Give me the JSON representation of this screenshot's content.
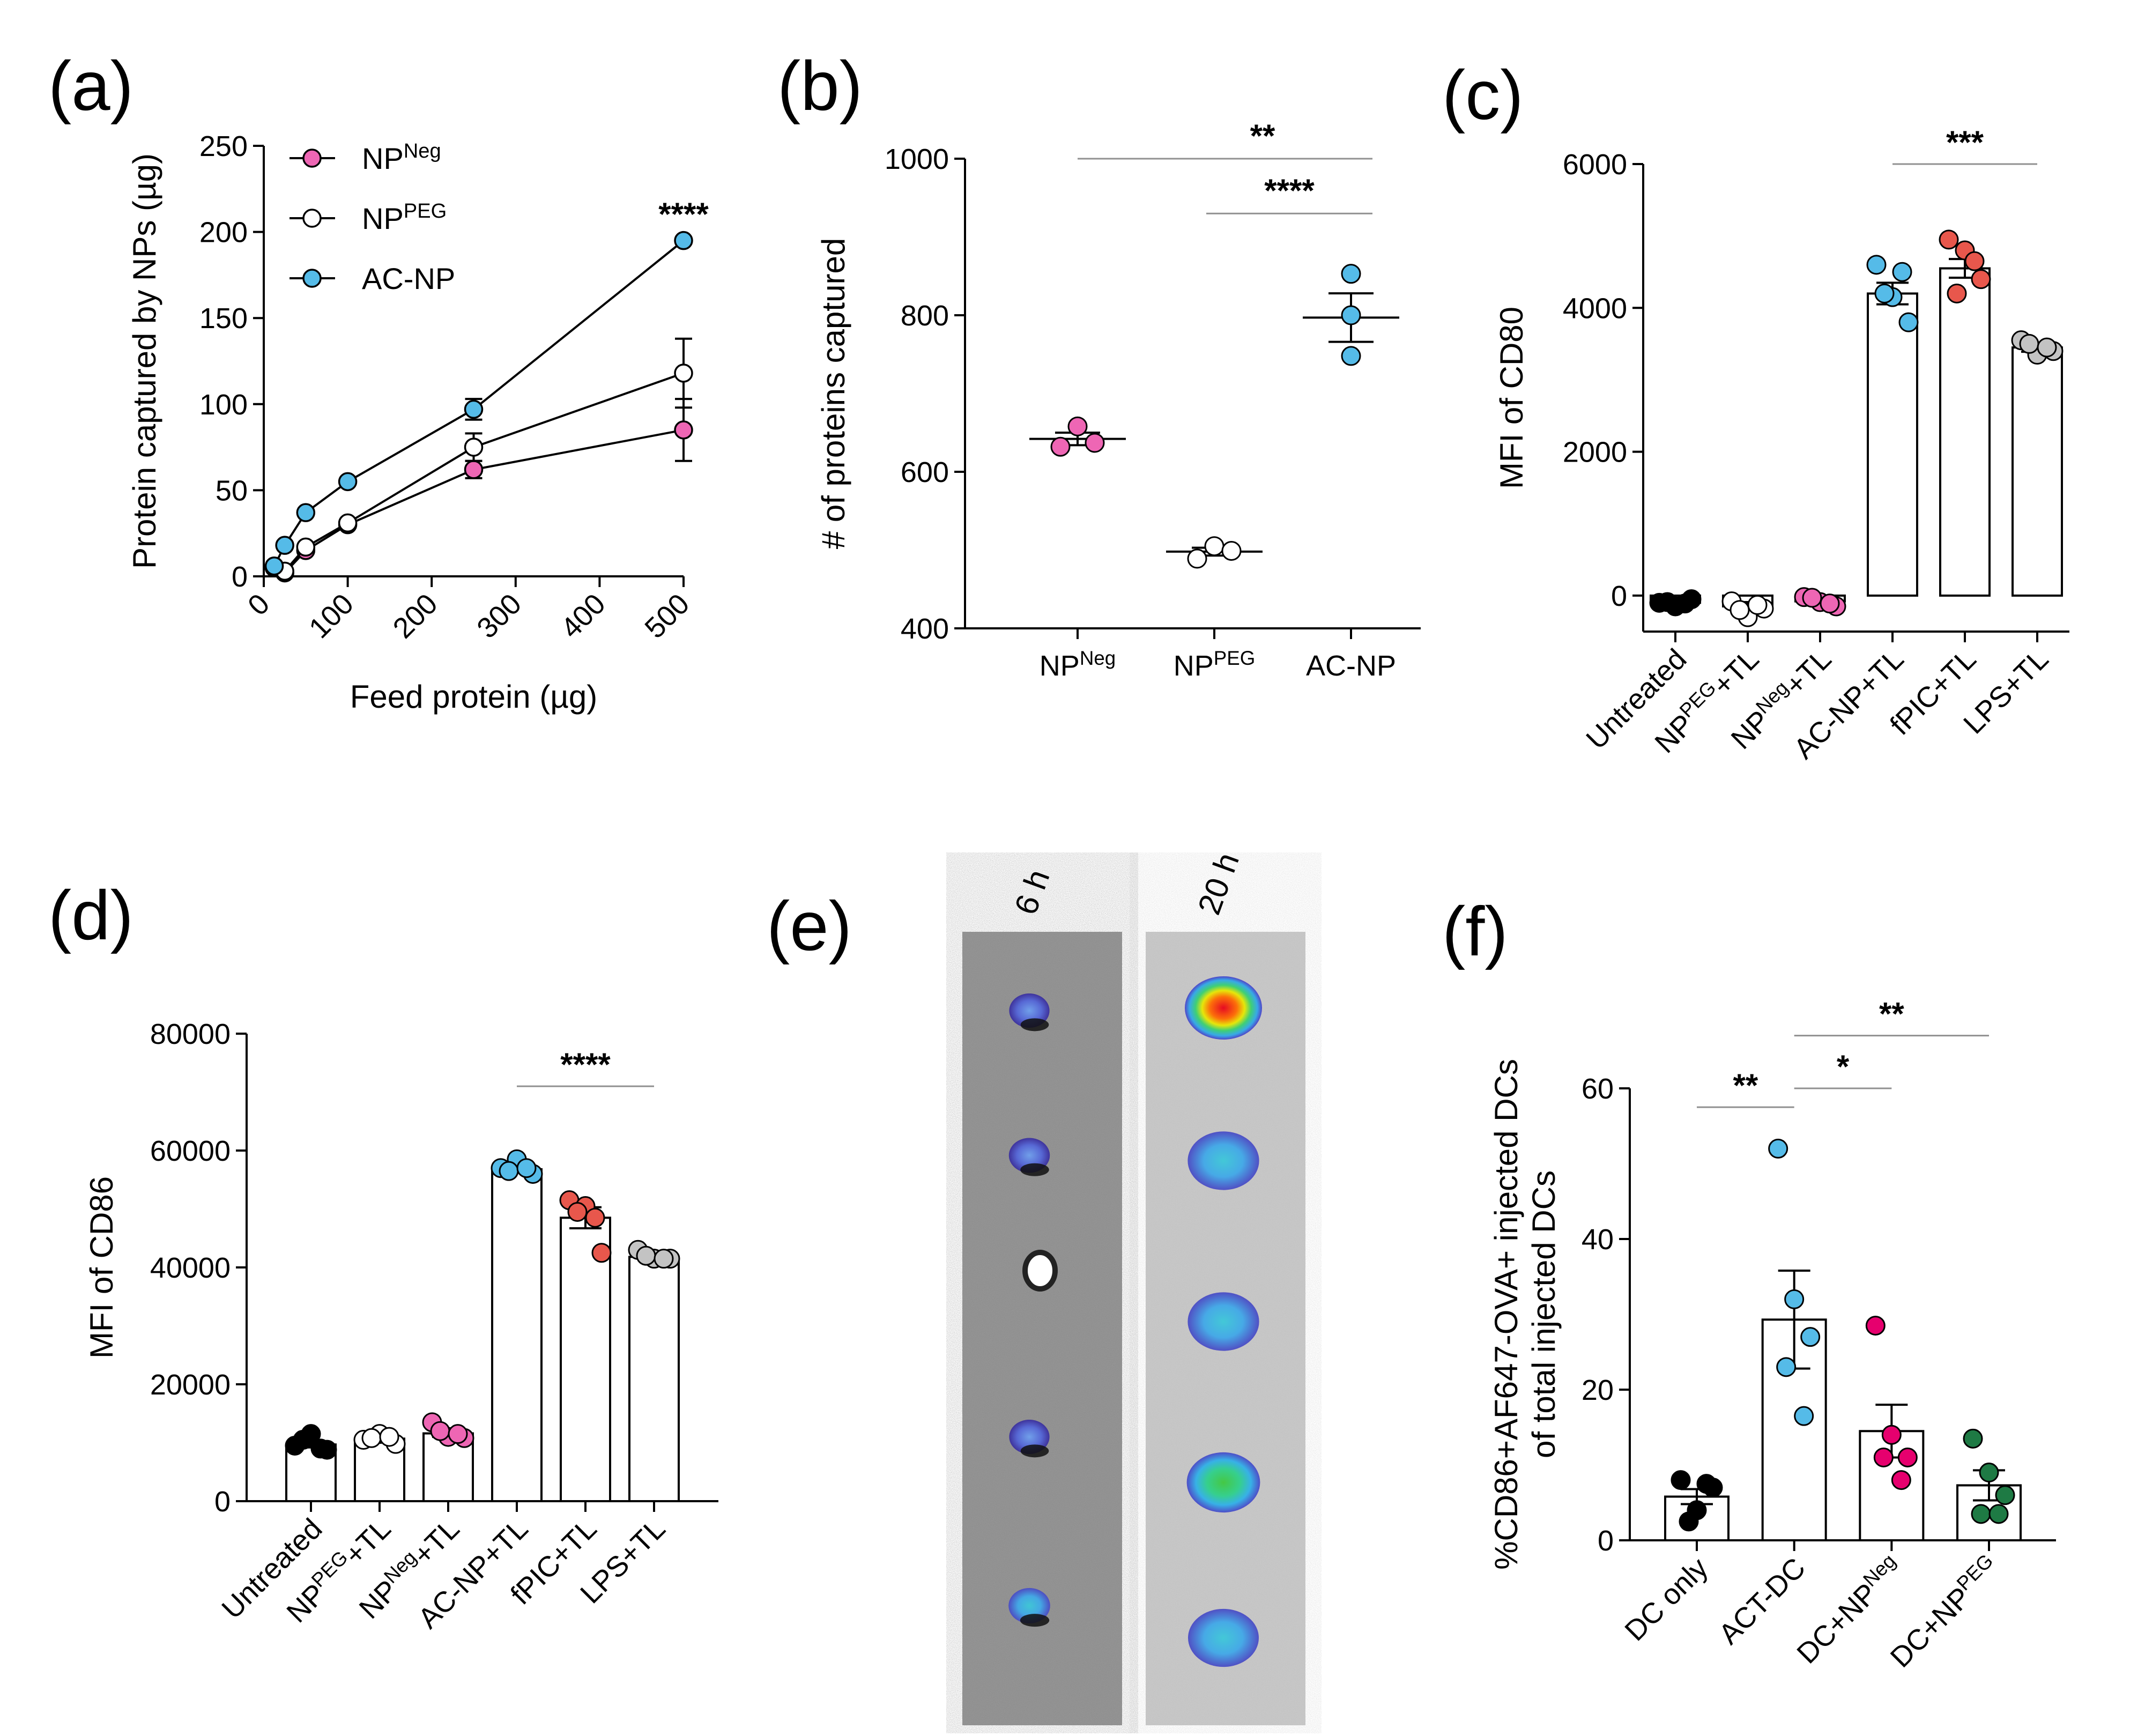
{
  "figure": {
    "panels": {
      "a": {
        "letter": "(a)"
      },
      "b": {
        "letter": "(b)"
      },
      "c": {
        "letter": "(c)"
      },
      "d": {
        "letter": "(d)"
      },
      "e": {
        "letter": "(e)"
      },
      "f": {
        "letter": "(f)"
      }
    }
  },
  "colors": {
    "pink": "#ee66b4",
    "cyan": "#55bbe8",
    "red": "#e8574c",
    "grey": "#c3c3c3",
    "black": "#000000",
    "magenta": "#e6006e",
    "green": "#1e7a44",
    "white": "#ffffff"
  },
  "chart_data": [
    {
      "id": "a",
      "type": "line",
      "xlabel": "Feed protein (µg)",
      "ylabel": "Protein captured by NPs (µg)",
      "xlim": [
        0,
        500
      ],
      "ylim": [
        0,
        250
      ],
      "xticks": [
        0,
        100,
        200,
        300,
        400,
        500
      ],
      "yticks": [
        0,
        50,
        100,
        150,
        200,
        250
      ],
      "legend_position": "top-left",
      "x": [
        12.5,
        25,
        50,
        100,
        250,
        500
      ],
      "series": [
        {
          "name": "NP",
          "sup": "Neg",
          "marker": "pink",
          "values": [
            5,
            2,
            15,
            30,
            62,
            85
          ],
          "errors": [
            2,
            2,
            3,
            3,
            5,
            18
          ]
        },
        {
          "name": "NP",
          "sup": "PEG",
          "marker": "white",
          "values": [
            5,
            3,
            17,
            31,
            75,
            118
          ],
          "errors": [
            2,
            2,
            3,
            3,
            8,
            20
          ]
        },
        {
          "name": "AC-NP",
          "sup": "",
          "marker": "cyan",
          "values": [
            6,
            18,
            37,
            55,
            97,
            195
          ],
          "errors": [
            1,
            2,
            2,
            2,
            6,
            2
          ]
        }
      ],
      "annotations": [
        {
          "text": "****",
          "at_x": 500
        }
      ]
    },
    {
      "id": "b",
      "type": "scatter",
      "ylabel": "# of proteins captured",
      "ylim": [
        400,
        1000
      ],
      "yticks": [
        400,
        600,
        800,
        1000
      ],
      "groups": [
        {
          "label": "NP",
          "sup": "Neg",
          "marker": "pink",
          "points": [
            658,
            632,
            637
          ],
          "mean": 642,
          "sem": 8
        },
        {
          "label": "NP",
          "sup": "PEG",
          "marker": "white",
          "points": [
            505,
            489,
            499
          ],
          "mean": 498,
          "sem": 5
        },
        {
          "label": "AC-NP",
          "sup": "",
          "marker": "cyan",
          "points": [
            853,
            800,
            748
          ],
          "mean": 797,
          "sem": 31
        }
      ],
      "brackets": [
        {
          "from": 0,
          "to": 2,
          "text": "**",
          "y": 1000
        },
        {
          "from": 1,
          "to": 2,
          "text": "****",
          "y": 930
        }
      ]
    },
    {
      "id": "c",
      "type": "bar",
      "ylabel": "MFI of CD80",
      "ylim": [
        -500,
        6000
      ],
      "yticks": [
        0,
        2000,
        4000,
        6000
      ],
      "groups": [
        {
          "label": "Untreated",
          "sup": "",
          "suffix": "",
          "marker": "black",
          "mean": -100,
          "sem": 40,
          "points": [
            -100,
            -150,
            -50,
            -90,
            -110
          ]
        },
        {
          "label": "NP",
          "sup": "PEG",
          "suffix": "+TL",
          "marker": "white",
          "mean": -150,
          "sem": 60,
          "points": [
            -80,
            -300,
            -180,
            -200,
            -130
          ]
        },
        {
          "label": "NP",
          "sup": "Neg",
          "suffix": "+TL",
          "marker": "pink",
          "mean": -80,
          "sem": 40,
          "points": [
            -20,
            -90,
            -150,
            -30,
            -110
          ]
        },
        {
          "label": "AC-NP+TL",
          "sup": "",
          "suffix": "",
          "marker": "cyan",
          "mean": 4200,
          "sem": 150,
          "points": [
            4600,
            4150,
            3800,
            4200,
            4500
          ]
        },
        {
          "label": "fPIC+TL",
          "sup": "",
          "suffix": "",
          "marker": "red",
          "mean": 4550,
          "sem": 130,
          "points": [
            4950,
            4800,
            4400,
            4200,
            4650
          ]
        },
        {
          "label": "LPS+TL",
          "sup": "",
          "suffix": "",
          "marker": "grey",
          "mean": 3450,
          "sem": 60,
          "points": [
            3550,
            3350,
            3400,
            3500,
            3450
          ]
        }
      ],
      "brackets": [
        {
          "from": 3,
          "to": 5,
          "text": "***",
          "y": 6000
        }
      ]
    },
    {
      "id": "d",
      "type": "bar",
      "ylabel": "MFI of CD86",
      "ylim": [
        0,
        80000
      ],
      "yticks": [
        0,
        20000,
        40000,
        60000,
        80000
      ],
      "groups": [
        {
          "label": "Untreated",
          "sup": "",
          "suffix": "",
          "marker": "black",
          "mean": 9700,
          "sem": 500,
          "points": [
            9500,
            11500,
            8800,
            10500,
            9000
          ]
        },
        {
          "label": "NP",
          "sup": "PEG",
          "suffix": "+TL",
          "marker": "white",
          "mean": 10700,
          "sem": 300,
          "points": [
            10500,
            11500,
            9800,
            10800,
            11000
          ]
        },
        {
          "label": "NP",
          "sup": "Neg",
          "suffix": "+TL",
          "marker": "pink",
          "mean": 11600,
          "sem": 600,
          "points": [
            13500,
            11000,
            10800,
            12000,
            11500
          ]
        },
        {
          "label": "AC-NP+TL",
          "sup": "",
          "suffix": "",
          "marker": "cyan",
          "mean": 56800,
          "sem": 500,
          "points": [
            57000,
            58500,
            56000,
            56500,
            57000
          ]
        },
        {
          "label": "fPIC+TL",
          "sup": "",
          "suffix": "",
          "marker": "red",
          "mean": 48500,
          "sem": 1800,
          "points": [
            51500,
            50500,
            42500,
            49500,
            48500
          ]
        },
        {
          "label": "LPS+TL",
          "sup": "",
          "suffix": "",
          "marker": "grey",
          "mean": 41800,
          "sem": 500,
          "points": [
            43000,
            41500,
            41500,
            42000,
            41500
          ]
        }
      ],
      "brackets": [
        {
          "from": 3,
          "to": 5,
          "text": "****",
          "y": 71000
        }
      ]
    },
    {
      "id": "f",
      "type": "bar",
      "ylabel_line1": "%CD86+AF647-OVA+ injected DCs",
      "ylabel_line2": "of total injected DCs",
      "ylim": [
        0,
        60
      ],
      "yticks": [
        0,
        20,
        40,
        60
      ],
      "groups": [
        {
          "label": "DC only",
          "sup": "",
          "suffix": "",
          "marker": "black",
          "mean": 5.8,
          "sem": 1.0,
          "points": [
            8,
            4,
            7,
            2.5,
            7.5
          ]
        },
        {
          "label": "ACT-DC",
          "sup": "",
          "suffix": "",
          "marker": "cyan",
          "mean": 29.3,
          "sem": 6.5,
          "points": [
            52,
            32,
            27,
            23,
            16.5
          ]
        },
        {
          "label": "DC+NP",
          "sup": "Neg",
          "suffix": "",
          "marker": "magenta",
          "mean": 14.5,
          "sem": 3.5,
          "points": [
            28.5,
            14,
            11,
            11,
            8
          ]
        },
        {
          "label": "DC+NP",
          "sup": "PEG",
          "suffix": "",
          "marker": "green",
          "mean": 7.3,
          "sem": 2.0,
          "points": [
            13.5,
            9,
            6,
            3.5,
            3.5
          ]
        }
      ],
      "brackets": [
        {
          "from": 1,
          "to": 3,
          "text": "**",
          "y": 67
        },
        {
          "from": 0,
          "to": 1,
          "text": "**",
          "y": 57.5
        },
        {
          "from": 1,
          "to": 2,
          "text": "*",
          "y": 60
        }
      ]
    }
  ],
  "imaging": {
    "columns": [
      {
        "label": "6 h",
        "spots": [
          {
            "color": "blue",
            "intensity": 0.3
          },
          {
            "color": "blue",
            "intensity": 0.35
          },
          {
            "color": "none",
            "intensity": 0.0
          },
          {
            "color": "blue",
            "intensity": 0.3
          },
          {
            "color": "cyan",
            "intensity": 0.4
          }
        ]
      },
      {
        "label": "20 h",
        "spots": [
          {
            "color": "red",
            "intensity": 1.0
          },
          {
            "color": "cyan",
            "intensity": 0.55
          },
          {
            "color": "cyan",
            "intensity": 0.55
          },
          {
            "color": "green",
            "intensity": 0.7
          },
          {
            "color": "cyan",
            "intensity": 0.5
          }
        ]
      }
    ]
  }
}
